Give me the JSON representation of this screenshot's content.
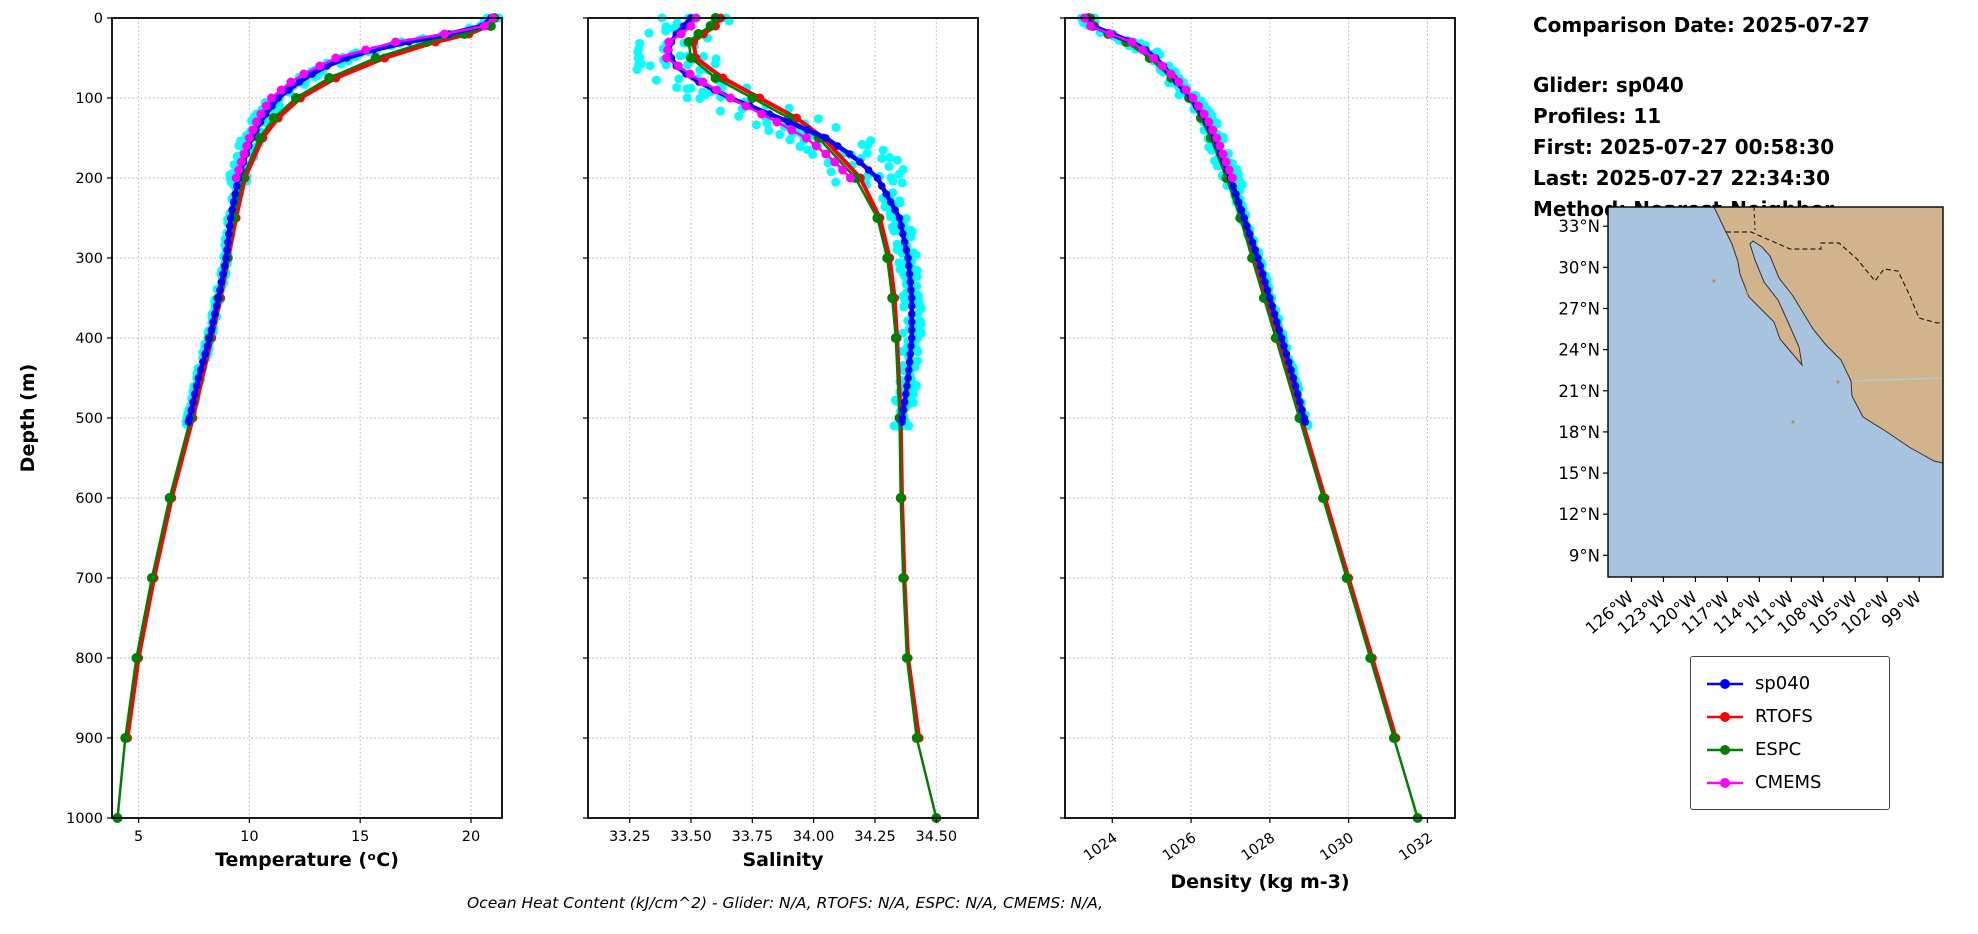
{
  "info_panel": {
    "comparison_date": "Comparison Date: 2025-07-27",
    "lines": [
      "Glider: sp040",
      "Profiles: 11",
      "First: 2025-07-27 00:58:30",
      "Last: 2025-07-27 22:34:30",
      "Method: Nearest-Neighbor"
    ]
  },
  "footer_note": "Ocean Heat Content (kJ/cm^2) - Glider: N/A,  RTOFS: N/A,  ESPC: N/A,  CMEMS: N/A,",
  "legend": {
    "items": [
      {
        "label": "sp040",
        "color": "#0000ff"
      },
      {
        "label": "RTOFS",
        "color": "#ff0000"
      },
      {
        "label": "ESPC",
        "color": "#008000"
      },
      {
        "label": "CMEMS",
        "color": "#ff00ff"
      }
    ]
  },
  "map": {
    "lat_ticks": [
      "33°N",
      "30°N",
      "27°N",
      "24°N",
      "21°N",
      "18°N",
      "15°N",
      "12°N",
      "9°N"
    ],
    "lon_ticks": [
      "126°W",
      "123°W",
      "120°W",
      "117°W",
      "114°W",
      "111°W",
      "108°W",
      "105°W",
      "102°W",
      "99°W"
    ],
    "ocean_color": "#a8c3de",
    "land_color": "#d2b48c"
  },
  "chart_data": [
    {
      "type": "line",
      "id": "temperature",
      "xlabel": "Temperature (ᵒC)",
      "ylabel": "Depth (m)",
      "xlim": [
        3.8,
        21.4
      ],
      "ylim": [
        0,
        1000
      ],
      "xticks": [
        5,
        10,
        15,
        20
      ],
      "xtick_labels": [
        "5",
        "10",
        "15",
        "20"
      ],
      "yticks": [
        0,
        100,
        200,
        300,
        400,
        500,
        600,
        700,
        800,
        900,
        1000
      ],
      "series": [
        {
          "name": "glider-profiles",
          "type": "scatter",
          "color": "#00ffff",
          "base": "sp040",
          "copies": 6,
          "step": 12,
          "max_depth": 510,
          "depth_jitter": 20,
          "jitter_shallow": 0.45,
          "jitter_deep": 0.13,
          "r": 4.5
        },
        {
          "name": "RTOFS",
          "color": "#ff0000",
          "lw": 4,
          "r": 4.5,
          "depths": [
            0,
            10,
            20,
            30,
            50,
            75,
            100,
            125,
            150,
            200,
            250,
            300,
            350,
            400,
            500,
            600,
            700,
            800,
            900
          ],
          "values": [
            21.0,
            20.8,
            19.9,
            18.4,
            16.1,
            13.9,
            12.3,
            11.3,
            10.6,
            9.8,
            9.4,
            9.05,
            8.7,
            8.3,
            7.45,
            6.5,
            5.7,
            5.0,
            4.5
          ]
        },
        {
          "name": "ESPC",
          "color": "#008000",
          "lw": 2.5,
          "r": 5,
          "depths": [
            0,
            10,
            20,
            30,
            50,
            75,
            100,
            125,
            150,
            200,
            250,
            300,
            350,
            400,
            500,
            600,
            700,
            800,
            900,
            1000
          ],
          "values": [
            21.05,
            20.9,
            19.7,
            18.0,
            15.7,
            13.6,
            12.1,
            11.1,
            10.45,
            9.7,
            9.3,
            9.0,
            8.6,
            8.2,
            7.35,
            6.4,
            5.6,
            4.9,
            4.4,
            4.05
          ]
        },
        {
          "name": "sp040",
          "color": "#0000ff",
          "lw": 4.5,
          "r": 3.8,
          "dense": 10,
          "depths": [
            0,
            10,
            20,
            30,
            40,
            50,
            60,
            75,
            100,
            125,
            150,
            175,
            200,
            250,
            300,
            350,
            400,
            450,
            505
          ],
          "values": [
            20.9,
            20.5,
            19.0,
            17.2,
            15.6,
            14.4,
            13.5,
            12.5,
            11.3,
            10.6,
            10.1,
            9.8,
            9.5,
            9.15,
            8.95,
            8.6,
            8.2,
            7.7,
            7.25
          ]
        },
        {
          "name": "CMEMS",
          "color": "#ff00ff",
          "lw": 2.5,
          "r": 4.5,
          "dense": 10,
          "depths": [
            0,
            10,
            20,
            30,
            50,
            75,
            100,
            125,
            150,
            175,
            200
          ],
          "values": [
            21.0,
            20.6,
            18.8,
            16.6,
            13.9,
            12.1,
            11.0,
            10.4,
            10.0,
            9.7,
            9.4
          ]
        }
      ]
    },
    {
      "type": "line",
      "id": "salinity",
      "xlabel": "Salinity",
      "xlim": [
        33.08,
        34.67
      ],
      "ylim": [
        0,
        1000
      ],
      "xticks": [
        33.25,
        33.5,
        33.75,
        34.0,
        34.25,
        34.5
      ],
      "xtick_labels": [
        "33.25",
        "33.50",
        "33.75",
        "34.00",
        "34.25",
        "34.50"
      ],
      "yticks": [
        0,
        100,
        200,
        300,
        400,
        500,
        600,
        700,
        800,
        900,
        1000
      ],
      "series": [
        {
          "name": "glider-profiles",
          "type": "scatter",
          "color": "#00ffff",
          "base": "sp040",
          "copies": 6,
          "step": 12,
          "max_depth": 510,
          "depth_jitter": 25,
          "jitter_shallow": 0.18,
          "jitter_deep": 0.04,
          "r": 4.5
        },
        {
          "name": "RTOFS",
          "color": "#ff0000",
          "lw": 4,
          "r": 4.5,
          "depths": [
            0,
            10,
            20,
            30,
            50,
            75,
            100,
            125,
            150,
            200,
            250,
            300,
            350,
            400,
            500,
            600,
            700,
            800,
            900
          ],
          "values": [
            33.62,
            33.6,
            33.55,
            33.51,
            33.52,
            33.63,
            33.78,
            33.93,
            34.04,
            34.19,
            34.27,
            34.31,
            34.33,
            34.34,
            34.355,
            34.36,
            34.37,
            34.385,
            34.43
          ]
        },
        {
          "name": "ESPC",
          "color": "#008000",
          "lw": 2.5,
          "r": 5,
          "depths": [
            0,
            10,
            20,
            30,
            50,
            75,
            100,
            125,
            150,
            200,
            250,
            300,
            350,
            400,
            500,
            600,
            700,
            800,
            900,
            1000
          ],
          "values": [
            33.6,
            33.58,
            33.53,
            33.49,
            33.5,
            33.6,
            33.75,
            33.9,
            34.02,
            34.17,
            34.26,
            34.3,
            34.32,
            34.335,
            34.35,
            34.355,
            34.365,
            34.38,
            34.42,
            34.5
          ]
        },
        {
          "name": "sp040",
          "color": "#0000ff",
          "lw": 4.5,
          "r": 3.8,
          "dense": 10,
          "depths": [
            0,
            10,
            20,
            30,
            40,
            50,
            60,
            75,
            100,
            125,
            150,
            175,
            200,
            250,
            300,
            350,
            400,
            450,
            505
          ],
          "values": [
            33.5,
            33.47,
            33.44,
            33.42,
            33.41,
            33.42,
            33.44,
            33.5,
            33.66,
            33.86,
            34.05,
            34.17,
            34.26,
            34.35,
            34.385,
            34.4,
            34.4,
            34.385,
            34.36
          ]
        },
        {
          "name": "CMEMS",
          "color": "#ff00ff",
          "lw": 2.5,
          "r": 4.5,
          "dense": 10,
          "depths": [
            0,
            10,
            20,
            30,
            50,
            75,
            100,
            125,
            150,
            175,
            200
          ],
          "values": [
            33.52,
            33.5,
            33.46,
            33.41,
            33.4,
            33.52,
            33.66,
            33.82,
            33.97,
            34.07,
            34.15
          ]
        }
      ]
    },
    {
      "type": "line",
      "id": "density",
      "xlabel": "Density (kg m-3)",
      "rotate_xticks": true,
      "xlim": [
        1022.8,
        1032.7
      ],
      "ylim": [
        0,
        1000
      ],
      "xticks": [
        1024,
        1026,
        1028,
        1030,
        1032
      ],
      "xtick_labels": [
        "1024",
        "1026",
        "1028",
        "1030",
        "1032"
      ],
      "yticks": [
        0,
        100,
        200,
        300,
        400,
        500,
        600,
        700,
        800,
        900,
        1000
      ],
      "series": [
        {
          "name": "glider-profiles",
          "type": "scatter",
          "color": "#00ffff",
          "base": "sp040",
          "copies": 6,
          "step": 12,
          "max_depth": 510,
          "depth_jitter": 20,
          "jitter_shallow": 0.25,
          "jitter_deep": 0.07,
          "r": 4.5
        },
        {
          "name": "RTOFS",
          "color": "#ff0000",
          "lw": 4,
          "r": 4.5,
          "depths": [
            0,
            10,
            20,
            30,
            50,
            75,
            100,
            125,
            150,
            200,
            250,
            300,
            350,
            400,
            500,
            600,
            700,
            800,
            900
          ],
          "values": [
            1023.45,
            1023.55,
            1023.95,
            1024.4,
            1025.0,
            1025.55,
            1026.0,
            1026.3,
            1026.55,
            1026.95,
            1027.3,
            1027.6,
            1027.9,
            1028.2,
            1028.8,
            1029.4,
            1030.0,
            1030.6,
            1031.2
          ]
        },
        {
          "name": "ESPC",
          "color": "#008000",
          "lw": 2.5,
          "r": 5,
          "depths": [
            0,
            10,
            20,
            30,
            50,
            75,
            100,
            125,
            150,
            200,
            250,
            300,
            350,
            400,
            500,
            600,
            700,
            800,
            900,
            1000
          ],
          "values": [
            1023.4,
            1023.5,
            1023.9,
            1024.35,
            1024.95,
            1025.5,
            1025.95,
            1026.25,
            1026.5,
            1026.9,
            1027.25,
            1027.55,
            1027.85,
            1028.15,
            1028.75,
            1029.35,
            1029.95,
            1030.55,
            1031.15,
            1031.75
          ]
        },
        {
          "name": "sp040",
          "color": "#0000ff",
          "lw": 4.5,
          "r": 3.8,
          "dense": 10,
          "depths": [
            0,
            10,
            20,
            30,
            40,
            50,
            60,
            75,
            100,
            125,
            150,
            175,
            200,
            250,
            300,
            350,
            400,
            450,
            505
          ],
          "values": [
            1023.35,
            1023.5,
            1024.0,
            1024.5,
            1024.85,
            1025.1,
            1025.3,
            1025.55,
            1026.0,
            1026.35,
            1026.6,
            1026.8,
            1027.0,
            1027.35,
            1027.7,
            1028.0,
            1028.3,
            1028.6,
            1028.9
          ]
        },
        {
          "name": "CMEMS",
          "color": "#ff00ff",
          "lw": 2.5,
          "r": 4.5,
          "dense": 10,
          "depths": [
            0,
            10,
            20,
            30,
            50,
            75,
            100,
            125,
            150,
            175,
            200
          ],
          "values": [
            1023.3,
            1023.45,
            1023.95,
            1024.5,
            1025.05,
            1025.6,
            1026.05,
            1026.4,
            1026.65,
            1026.85,
            1027.05
          ]
        }
      ]
    }
  ]
}
